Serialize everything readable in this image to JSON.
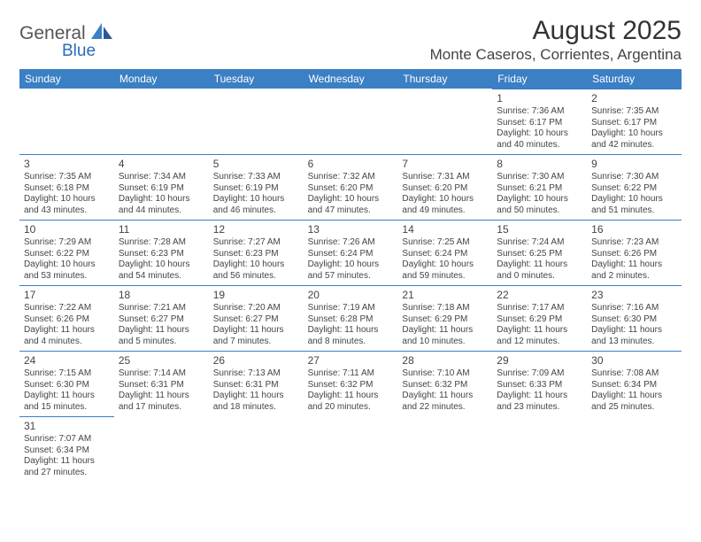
{
  "logo": {
    "text1": "General",
    "text2": "Blue",
    "color1": "#666",
    "color2": "#3b7fc4"
  },
  "title": "August 2025",
  "location": "Monte Caseros, Corrientes, Argentina",
  "header_bg": "#3b7fc4",
  "border_color": "#3b7fc4",
  "day_names": [
    "Sunday",
    "Monday",
    "Tuesday",
    "Wednesday",
    "Thursday",
    "Friday",
    "Saturday"
  ],
  "first_day_column": 5,
  "days": [
    {
      "n": 1,
      "sunrise": "7:36 AM",
      "sunset": "6:17 PM",
      "dl": "10 hours and 40 minutes."
    },
    {
      "n": 2,
      "sunrise": "7:35 AM",
      "sunset": "6:17 PM",
      "dl": "10 hours and 42 minutes."
    },
    {
      "n": 3,
      "sunrise": "7:35 AM",
      "sunset": "6:18 PM",
      "dl": "10 hours and 43 minutes."
    },
    {
      "n": 4,
      "sunrise": "7:34 AM",
      "sunset": "6:19 PM",
      "dl": "10 hours and 44 minutes."
    },
    {
      "n": 5,
      "sunrise": "7:33 AM",
      "sunset": "6:19 PM",
      "dl": "10 hours and 46 minutes."
    },
    {
      "n": 6,
      "sunrise": "7:32 AM",
      "sunset": "6:20 PM",
      "dl": "10 hours and 47 minutes."
    },
    {
      "n": 7,
      "sunrise": "7:31 AM",
      "sunset": "6:20 PM",
      "dl": "10 hours and 49 minutes."
    },
    {
      "n": 8,
      "sunrise": "7:30 AM",
      "sunset": "6:21 PM",
      "dl": "10 hours and 50 minutes."
    },
    {
      "n": 9,
      "sunrise": "7:30 AM",
      "sunset": "6:22 PM",
      "dl": "10 hours and 51 minutes."
    },
    {
      "n": 10,
      "sunrise": "7:29 AM",
      "sunset": "6:22 PM",
      "dl": "10 hours and 53 minutes."
    },
    {
      "n": 11,
      "sunrise": "7:28 AM",
      "sunset": "6:23 PM",
      "dl": "10 hours and 54 minutes."
    },
    {
      "n": 12,
      "sunrise": "7:27 AM",
      "sunset": "6:23 PM",
      "dl": "10 hours and 56 minutes."
    },
    {
      "n": 13,
      "sunrise": "7:26 AM",
      "sunset": "6:24 PM",
      "dl": "10 hours and 57 minutes."
    },
    {
      "n": 14,
      "sunrise": "7:25 AM",
      "sunset": "6:24 PM",
      "dl": "10 hours and 59 minutes."
    },
    {
      "n": 15,
      "sunrise": "7:24 AM",
      "sunset": "6:25 PM",
      "dl": "11 hours and 0 minutes."
    },
    {
      "n": 16,
      "sunrise": "7:23 AM",
      "sunset": "6:26 PM",
      "dl": "11 hours and 2 minutes."
    },
    {
      "n": 17,
      "sunrise": "7:22 AM",
      "sunset": "6:26 PM",
      "dl": "11 hours and 4 minutes."
    },
    {
      "n": 18,
      "sunrise": "7:21 AM",
      "sunset": "6:27 PM",
      "dl": "11 hours and 5 minutes."
    },
    {
      "n": 19,
      "sunrise": "7:20 AM",
      "sunset": "6:27 PM",
      "dl": "11 hours and 7 minutes."
    },
    {
      "n": 20,
      "sunrise": "7:19 AM",
      "sunset": "6:28 PM",
      "dl": "11 hours and 8 minutes."
    },
    {
      "n": 21,
      "sunrise": "7:18 AM",
      "sunset": "6:29 PM",
      "dl": "11 hours and 10 minutes."
    },
    {
      "n": 22,
      "sunrise": "7:17 AM",
      "sunset": "6:29 PM",
      "dl": "11 hours and 12 minutes."
    },
    {
      "n": 23,
      "sunrise": "7:16 AM",
      "sunset": "6:30 PM",
      "dl": "11 hours and 13 minutes."
    },
    {
      "n": 24,
      "sunrise": "7:15 AM",
      "sunset": "6:30 PM",
      "dl": "11 hours and 15 minutes."
    },
    {
      "n": 25,
      "sunrise": "7:14 AM",
      "sunset": "6:31 PM",
      "dl": "11 hours and 17 minutes."
    },
    {
      "n": 26,
      "sunrise": "7:13 AM",
      "sunset": "6:31 PM",
      "dl": "11 hours and 18 minutes."
    },
    {
      "n": 27,
      "sunrise": "7:11 AM",
      "sunset": "6:32 PM",
      "dl": "11 hours and 20 minutes."
    },
    {
      "n": 28,
      "sunrise": "7:10 AM",
      "sunset": "6:32 PM",
      "dl": "11 hours and 22 minutes."
    },
    {
      "n": 29,
      "sunrise": "7:09 AM",
      "sunset": "6:33 PM",
      "dl": "11 hours and 23 minutes."
    },
    {
      "n": 30,
      "sunrise": "7:08 AM",
      "sunset": "6:34 PM",
      "dl": "11 hours and 25 minutes."
    },
    {
      "n": 31,
      "sunrise": "7:07 AM",
      "sunset": "6:34 PM",
      "dl": "11 hours and 27 minutes."
    }
  ],
  "labels": {
    "sunrise": "Sunrise:",
    "sunset": "Sunset:",
    "daylight": "Daylight:"
  }
}
